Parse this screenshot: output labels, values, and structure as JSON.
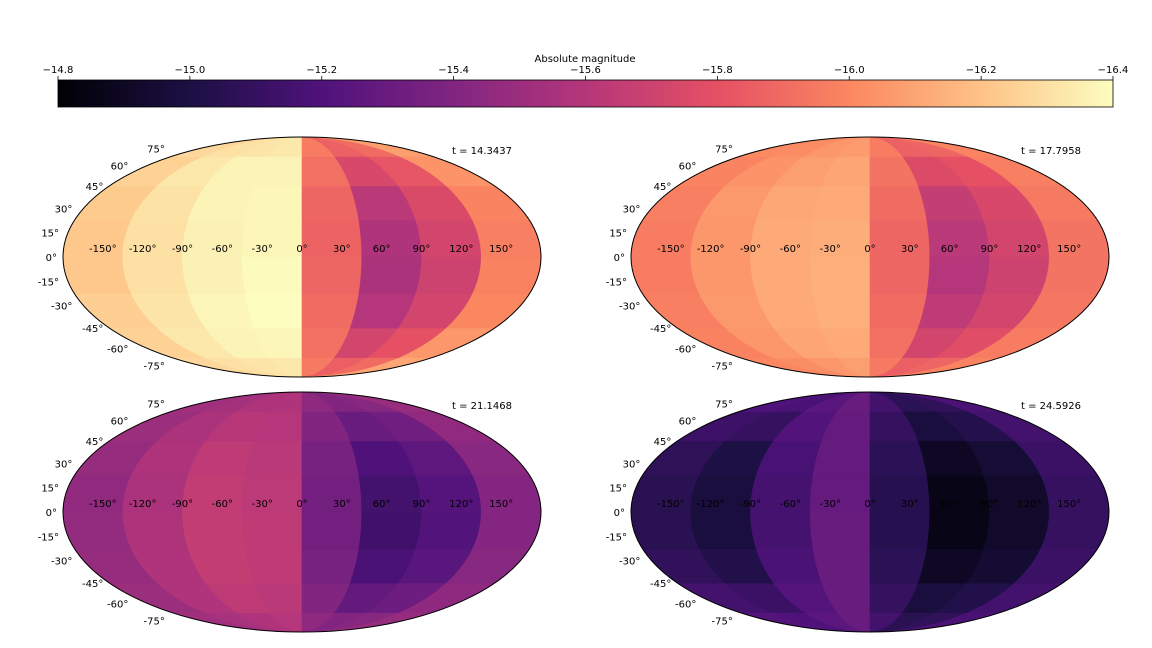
{
  "colorbar": {
    "label": "Absolute magnitude",
    "vmin": -14.8,
    "vmax": -16.4,
    "ticks": [
      "−14.8",
      "−15.0",
      "−15.2",
      "−15.4",
      "−15.6",
      "−15.8",
      "−16.0",
      "−16.2",
      "−16.4"
    ],
    "tick_values": [
      -14.8,
      -15.0,
      -15.2,
      -15.4,
      -15.6,
      -15.8,
      -16.0,
      -16.2,
      -16.4
    ],
    "colormap": "magma",
    "colormap_stops": [
      "#000004",
      "#1c1044",
      "#4f127b",
      "#812581",
      "#b5367a",
      "#e55064",
      "#fb8761",
      "#fec287",
      "#fcfdbf"
    ]
  },
  "chart_data": {
    "type": "heatmap",
    "projection": "mollweide",
    "lat_labels": [
      "75°",
      "60°",
      "45°",
      "30°",
      "15°",
      "0°",
      "-15°",
      "-30°",
      "-45°",
      "-60°",
      "-75°"
    ],
    "lat_values": [
      75,
      60,
      45,
      30,
      15,
      0,
      -15,
      -30,
      -45,
      -60,
      -75
    ],
    "lon_labels": [
      "-150°",
      "-120°",
      "-90°",
      "-60°",
      "-30°",
      "0°",
      "30°",
      "60°",
      "90°",
      "120°",
      "150°"
    ],
    "lon_values": [
      -150,
      -120,
      -90,
      -60,
      -30,
      0,
      30,
      60,
      90,
      120,
      150
    ],
    "lon_bin_edges": [
      -180,
      -135,
      -90,
      -45,
      0,
      45,
      90,
      135,
      180
    ],
    "lat_bin_edges": [
      -90,
      -67.5,
      -45,
      -22.5,
      0,
      22.5,
      45,
      67.5,
      90
    ],
    "panels": [
      {
        "title": "t = 14.3437",
        "values": [
          [
            -16.27,
            -16.3,
            -16.32,
            -16.33,
            -15.95,
            -15.85,
            -15.9,
            -16.1
          ],
          [
            -16.25,
            -16.33,
            -16.37,
            -16.38,
            -15.92,
            -15.72,
            -15.8,
            -16.05
          ],
          [
            -16.24,
            -16.32,
            -16.38,
            -16.4,
            -15.9,
            -15.6,
            -15.72,
            -16.0
          ],
          [
            -16.22,
            -16.3,
            -16.36,
            -16.39,
            -15.88,
            -15.56,
            -15.7,
            -15.98
          ],
          [
            -16.22,
            -16.3,
            -16.36,
            -16.38,
            -15.87,
            -15.58,
            -15.72,
            -15.97
          ],
          [
            -16.23,
            -16.31,
            -16.37,
            -16.38,
            -15.88,
            -15.62,
            -15.75,
            -15.99
          ],
          [
            -16.25,
            -16.33,
            -16.37,
            -16.37,
            -15.92,
            -15.74,
            -15.82,
            -16.04
          ],
          [
            -16.27,
            -16.3,
            -16.32,
            -16.33,
            -15.96,
            -15.86,
            -15.9,
            -16.08
          ]
        ]
      },
      {
        "title": "t = 17.7958",
        "values": [
          [
            -16.0,
            -16.02,
            -16.05,
            -16.08,
            -15.95,
            -15.85,
            -15.88,
            -15.98
          ],
          [
            -15.98,
            -16.05,
            -16.1,
            -16.12,
            -15.92,
            -15.72,
            -15.78,
            -15.96
          ],
          [
            -15.97,
            -16.06,
            -16.12,
            -16.14,
            -15.9,
            -15.64,
            -15.72,
            -15.94
          ],
          [
            -15.96,
            -16.05,
            -16.12,
            -16.14,
            -15.88,
            -15.6,
            -15.7,
            -15.93
          ],
          [
            -15.96,
            -16.05,
            -16.12,
            -16.13,
            -15.88,
            -15.62,
            -15.72,
            -15.93
          ],
          [
            -15.97,
            -16.06,
            -16.11,
            -16.12,
            -15.9,
            -15.66,
            -15.74,
            -15.95
          ],
          [
            -15.99,
            -16.04,
            -16.08,
            -16.1,
            -15.93,
            -15.76,
            -15.8,
            -15.97
          ],
          [
            -16.01,
            -16.02,
            -16.05,
            -16.07,
            -15.96,
            -15.86,
            -15.88,
            -15.99
          ]
        ]
      },
      {
        "title": "t = 21.1468",
        "values": [
          [
            -15.52,
            -15.55,
            -15.58,
            -15.6,
            -15.45,
            -15.4,
            -15.42,
            -15.48
          ],
          [
            -15.5,
            -15.58,
            -15.64,
            -15.62,
            -15.4,
            -15.28,
            -15.32,
            -15.45
          ],
          [
            -15.48,
            -15.58,
            -15.66,
            -15.64,
            -15.36,
            -15.18,
            -15.24,
            -15.42
          ],
          [
            -15.47,
            -15.57,
            -15.66,
            -15.64,
            -15.34,
            -15.14,
            -15.21,
            -15.41
          ],
          [
            -15.46,
            -15.56,
            -15.65,
            -15.63,
            -15.34,
            -15.15,
            -15.22,
            -15.41
          ],
          [
            -15.48,
            -15.57,
            -15.64,
            -15.62,
            -15.36,
            -15.2,
            -15.26,
            -15.43
          ],
          [
            -15.5,
            -15.56,
            -15.61,
            -15.6,
            -15.4,
            -15.3,
            -15.33,
            -15.46
          ],
          [
            -15.52,
            -15.54,
            -15.57,
            -15.58,
            -15.45,
            -15.4,
            -15.42,
            -15.49
          ]
        ]
      },
      {
        "title": "t = 24.5926",
        "values": [
          [
            -15.22,
            -15.2,
            -15.25,
            -15.3,
            -15.15,
            -15.05,
            -15.08,
            -15.18
          ],
          [
            -15.15,
            -15.12,
            -15.22,
            -15.3,
            -15.1,
            -14.98,
            -15.02,
            -15.15
          ],
          [
            -15.08,
            -15.02,
            -15.18,
            -15.3,
            -15.06,
            -14.9,
            -14.95,
            -15.12
          ],
          [
            -15.05,
            -14.98,
            -15.16,
            -15.3,
            -15.04,
            -14.86,
            -14.92,
            -15.1
          ],
          [
            -15.05,
            -14.98,
            -15.16,
            -15.29,
            -15.04,
            -14.86,
            -14.92,
            -15.1
          ],
          [
            -15.07,
            -15.0,
            -15.17,
            -15.29,
            -15.06,
            -14.9,
            -14.96,
            -15.12
          ],
          [
            -15.13,
            -15.1,
            -15.21,
            -15.29,
            -15.1,
            -14.98,
            -15.03,
            -15.15
          ],
          [
            -15.2,
            -15.18,
            -15.24,
            -15.3,
            -15.15,
            -15.06,
            -15.08,
            -15.18
          ]
        ]
      }
    ]
  }
}
